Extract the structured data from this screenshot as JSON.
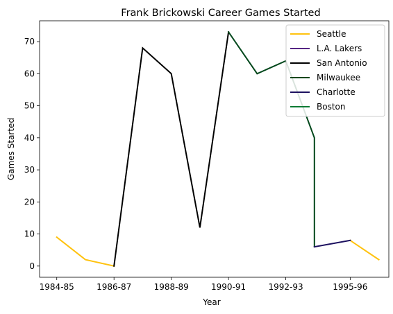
{
  "chart_data": {
    "type": "line",
    "title": "Frank Brickowski Career Games Started",
    "xlabel": "Year",
    "ylabel": "Games Started",
    "x_tick_labels": [
      "1984-85",
      "1986-87",
      "1988-89",
      "1990-91",
      "1992-93",
      "1995-96"
    ],
    "x_tick_positions": [
      0,
      2,
      4,
      6,
      8,
      10.25
    ],
    "y_ticks": [
      0,
      10,
      20,
      30,
      40,
      50,
      60,
      70
    ],
    "xlim": [
      -0.6,
      11.6
    ],
    "ylim": [
      -3.5,
      76.5
    ],
    "grid": false,
    "legend_position": "top-right",
    "series": [
      {
        "name": "Seattle",
        "color": "#FFC20E",
        "segments": [
          [
            [
              0,
              9
            ],
            [
              1,
              2
            ],
            [
              2,
              0
            ]
          ],
          [
            [
              10.25,
              8
            ],
            [
              11.25,
              2
            ]
          ]
        ]
      },
      {
        "name": "L.A. Lakers",
        "color": "#552583",
        "segments": []
      },
      {
        "name": "San Antonio",
        "color": "#000000",
        "segments": [
          [
            [
              2,
              0
            ],
            [
              3,
              68
            ],
            [
              4,
              60
            ],
            [
              5,
              12
            ],
            [
              6,
              73
            ]
          ]
        ]
      },
      {
        "name": "Milwaukee",
        "color": "#00471B",
        "segments": [
          [
            [
              6,
              73
            ],
            [
              7,
              60
            ],
            [
              8,
              64
            ],
            [
              9,
              40
            ],
            [
              9,
              6
            ]
          ]
        ]
      },
      {
        "name": "Charlotte",
        "color": "#1D1160",
        "segments": [
          [
            [
              9,
              6
            ],
            [
              10.25,
              8
            ]
          ]
        ]
      },
      {
        "name": "Boston",
        "color": "#007A33",
        "segments": []
      }
    ]
  }
}
